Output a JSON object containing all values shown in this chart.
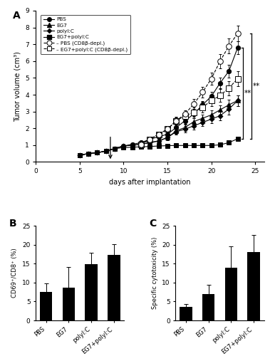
{
  "panel_A": {
    "xlabel": "days after implantation",
    "ylabel": "Tumor volume (cm³)",
    "xlim": [
      0,
      26
    ],
    "ylim": [
      0,
      9
    ],
    "yticks": [
      0,
      1,
      2,
      3,
      4,
      5,
      6,
      7,
      8,
      9
    ],
    "xticks": [
      0,
      5,
      10,
      15,
      20,
      25
    ],
    "series": {
      "PBS": {
        "x": [
          5,
          6,
          7,
          8,
          9,
          10,
          11,
          12,
          13,
          14,
          15,
          16,
          17,
          18,
          19,
          20,
          21,
          22,
          23
        ],
        "y": [
          0.4,
          0.5,
          0.55,
          0.65,
          0.8,
          0.95,
          1.05,
          1.15,
          1.35,
          1.5,
          1.65,
          2.05,
          2.45,
          2.85,
          3.4,
          3.9,
          4.7,
          5.4,
          6.8
        ],
        "err": [
          0.04,
          0.04,
          0.05,
          0.07,
          0.07,
          0.08,
          0.09,
          0.1,
          0.11,
          0.12,
          0.14,
          0.18,
          0.19,
          0.23,
          0.24,
          0.28,
          0.32,
          0.38,
          0.38
        ],
        "marker": "o",
        "filled": true,
        "linestyle": "-",
        "ms": 4.5
      },
      "EG7": {
        "x": [
          5,
          6,
          7,
          8,
          9,
          10,
          11,
          12,
          13,
          14,
          15,
          16,
          17,
          18,
          19,
          20,
          21,
          22,
          23
        ],
        "y": [
          0.4,
          0.5,
          0.55,
          0.65,
          0.8,
          0.95,
          1.0,
          1.05,
          1.15,
          1.25,
          1.45,
          1.85,
          2.05,
          2.4,
          2.6,
          2.8,
          3.1,
          3.4,
          3.65
        ],
        "err": [
          0.04,
          0.04,
          0.05,
          0.07,
          0.07,
          0.08,
          0.09,
          0.1,
          0.11,
          0.11,
          0.14,
          0.18,
          0.19,
          0.22,
          0.23,
          0.27,
          0.28,
          0.32,
          0.32
        ],
        "marker": "^",
        "filled": true,
        "linestyle": "-",
        "ms": 4.5
      },
      "polyIC": {
        "x": [
          5,
          6,
          7,
          8,
          9,
          10,
          11,
          12,
          13,
          14,
          15,
          16,
          17,
          18,
          19,
          20,
          21,
          22,
          23
        ],
        "y": [
          0.4,
          0.5,
          0.55,
          0.65,
          0.8,
          0.95,
          1.0,
          1.05,
          1.15,
          1.25,
          1.45,
          1.8,
          1.95,
          2.15,
          2.35,
          2.55,
          2.75,
          3.15,
          3.65
        ],
        "err": [
          0.04,
          0.04,
          0.05,
          0.07,
          0.07,
          0.08,
          0.09,
          0.1,
          0.11,
          0.11,
          0.14,
          0.18,
          0.18,
          0.23,
          0.23,
          0.23,
          0.28,
          0.32,
          0.32
        ],
        "marker": "D",
        "filled": true,
        "linestyle": "-",
        "ms": 3.5
      },
      "EG7polyIC": {
        "x": [
          5,
          6,
          7,
          8,
          9,
          10,
          11,
          12,
          13,
          14,
          15,
          16,
          17,
          18,
          19,
          20,
          21,
          22,
          23
        ],
        "y": [
          0.4,
          0.5,
          0.55,
          0.65,
          0.8,
          0.85,
          0.88,
          0.9,
          0.92,
          0.95,
          0.97,
          0.98,
          0.98,
          0.98,
          0.98,
          0.98,
          1.02,
          1.15,
          1.38
        ],
        "err": [
          0.04,
          0.04,
          0.05,
          0.07,
          0.07,
          0.07,
          0.07,
          0.07,
          0.07,
          0.07,
          0.07,
          0.07,
          0.07,
          0.07,
          0.07,
          0.09,
          0.09,
          0.09,
          0.13
        ],
        "marker": "s",
        "filled": true,
        "linestyle": "-",
        "ms": 4.5
      },
      "PBS_depl": {
        "x": [
          12,
          13,
          14,
          15,
          16,
          17,
          18,
          19,
          20,
          21,
          22,
          23
        ],
        "y": [
          1.05,
          1.35,
          1.65,
          1.95,
          2.45,
          2.85,
          3.45,
          4.15,
          4.95,
          6.0,
          6.9,
          7.65
        ],
        "err": [
          0.09,
          0.14,
          0.14,
          0.18,
          0.18,
          0.23,
          0.28,
          0.32,
          0.37,
          0.42,
          0.46,
          0.46
        ],
        "marker": "o",
        "filled": false,
        "linestyle": "--",
        "ms": 5.5
      },
      "EG7polyIC_depl": {
        "x": [
          12,
          13,
          14,
          15,
          16,
          17,
          18,
          19,
          20,
          21,
          22,
          23
        ],
        "y": [
          1.05,
          1.35,
          1.65,
          1.95,
          2.45,
          2.75,
          2.95,
          3.25,
          3.65,
          3.95,
          4.4,
          4.95
        ],
        "err": [
          0.09,
          0.14,
          0.14,
          0.18,
          0.23,
          0.23,
          0.28,
          0.32,
          0.32,
          0.37,
          0.42,
          0.46
        ],
        "marker": "s",
        "filled": false,
        "linestyle": "--",
        "ms": 5.5
      }
    }
  },
  "panel_B": {
    "ylabel": "CD69⁺/CD8⁺ (%)",
    "categories": [
      "PBS",
      "EG7",
      "polyI:C",
      "EG7+polyI:C"
    ],
    "values": [
      7.5,
      8.7,
      14.8,
      17.3
    ],
    "errors": [
      2.2,
      5.5,
      3.0,
      2.8
    ],
    "ylim": [
      0,
      25
    ],
    "yticks": [
      0,
      5,
      10,
      15,
      20,
      25
    ]
  },
  "panel_C": {
    "ylabel": "Specific cytotoxicity (%)",
    "categories": [
      "PBS",
      "EG7",
      "polyI:C",
      "EG7+polyI:C"
    ],
    "values": [
      3.5,
      7.0,
      14.0,
      18.0
    ],
    "errors": [
      0.8,
      2.5,
      5.5,
      4.5
    ],
    "ylim": [
      0,
      25
    ],
    "yticks": [
      0,
      5,
      10,
      15,
      20,
      25
    ]
  }
}
